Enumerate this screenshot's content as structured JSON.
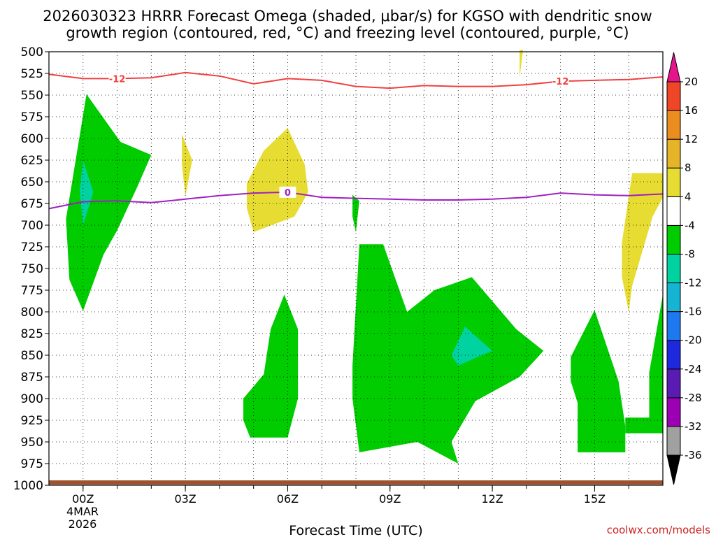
{
  "chart_data": {
    "type": "heatmap",
    "title_line1": "2026030323 HRRR Forecast Omega (shaded, μbar/s) for KGSO with dendritic snow",
    "title_line2": "growth region (contoured, red, °C) and freezing level (contoured, purple, °C)",
    "xlabel": "Forecast Time (UTC)",
    "credit": "coolwx.com/models",
    "credit_color": "#cc2222",
    "x_range_hours": [
      -1,
      17
    ],
    "y_range_hpa": [
      500,
      1000
    ],
    "y_ticks": [
      500,
      525,
      550,
      575,
      600,
      625,
      650,
      675,
      700,
      725,
      750,
      775,
      800,
      825,
      850,
      875,
      900,
      925,
      950,
      975,
      1000
    ],
    "x_ticks": [
      {
        "hour": 0,
        "label": "00Z"
      },
      {
        "hour": 3,
        "label": "03Z"
      },
      {
        "hour": 6,
        "label": "06Z"
      },
      {
        "hour": 9,
        "label": "09Z"
      },
      {
        "hour": 12,
        "label": "12Z"
      },
      {
        "hour": 15,
        "label": "15Z"
      }
    ],
    "x_date_label_line1": "4MAR",
    "x_date_label_line2": "2026",
    "grid": "dotted",
    "colorbar": {
      "levels": [
        -36,
        -32,
        -28,
        -24,
        -20,
        -16,
        -12,
        -8,
        -4,
        4,
        8,
        12,
        16,
        20
      ],
      "level_labels": [
        "-36",
        "-32",
        "-28",
        "-24",
        "-20",
        "-16",
        "-12",
        "-8",
        "-4",
        "4",
        "8",
        "12",
        "16",
        "20"
      ],
      "colors": [
        "#a0a0a0",
        "#9b00b4",
        "#5a1ab4",
        "#1e28dc",
        "#1e78f0",
        "#14b4d2",
        "#00d2a0",
        "#00cc00",
        "#ffffff",
        "#e6dc32",
        "#e6b428",
        "#eb8c1e",
        "#f04628"
      ],
      "below_color": "#000000",
      "above_color": "#e6148c"
    },
    "shaded_regions": [
      {
        "category": "-8 to -4",
        "color": "#00cc00",
        "points": [
          [
            -0.5,
            693
          ],
          [
            0.1,
            549
          ],
          [
            1.1,
            604
          ],
          [
            2.0,
            619
          ],
          [
            1.6,
            655
          ],
          [
            1.0,
            706
          ],
          [
            0.6,
            734
          ],
          [
            0.0,
            799
          ],
          [
            -0.4,
            763
          ]
        ]
      },
      {
        "category": "-12 to -8",
        "color": "#00d2a0",
        "points": [
          [
            0.0,
            625
          ],
          [
            0.3,
            662
          ],
          [
            0.0,
            700
          ],
          [
            -0.1,
            660
          ]
        ]
      },
      {
        "category": "4 to 8",
        "color": "#e6dc32",
        "points": [
          [
            2.9,
            595
          ],
          [
            3.2,
            625
          ],
          [
            3.0,
            667
          ],
          [
            2.9,
            630
          ]
        ]
      },
      {
        "category": "4 to 8",
        "color": "#e6dc32",
        "points": [
          [
            4.8,
            652
          ],
          [
            5.3,
            614
          ],
          [
            6.0,
            588
          ],
          [
            6.5,
            630
          ],
          [
            6.6,
            662
          ],
          [
            6.2,
            690
          ],
          [
            5.0,
            708
          ],
          [
            4.8,
            680
          ]
        ]
      },
      {
        "category": "4 to 8",
        "color": "#e6dc32",
        "points": [
          [
            12.8,
            498
          ],
          [
            12.9,
            498
          ],
          [
            12.8,
            530
          ]
        ]
      },
      {
        "category": "-8 to -4",
        "color": "#00cc00",
        "points": [
          [
            7.9,
            665
          ],
          [
            8.1,
            672
          ],
          [
            8.0,
            708
          ],
          [
            7.9,
            690
          ]
        ]
      },
      {
        "category": "-8 to -4",
        "color": "#00cc00",
        "points": [
          [
            4.7,
            900
          ],
          [
            5.3,
            872
          ],
          [
            5.5,
            820
          ],
          [
            5.9,
            780
          ],
          [
            6.3,
            820
          ],
          [
            6.3,
            900
          ],
          [
            6.0,
            945
          ],
          [
            4.9,
            945
          ],
          [
            4.7,
            925
          ]
        ]
      },
      {
        "category": "-8 to -4",
        "color": "#00cc00",
        "points": [
          [
            7.9,
            862
          ],
          [
            8.1,
            722
          ],
          [
            8.8,
            722
          ],
          [
            9.5,
            800
          ],
          [
            10.3,
            775
          ],
          [
            11.4,
            760
          ],
          [
            12.7,
            820
          ],
          [
            13.5,
            845
          ],
          [
            12.8,
            875
          ],
          [
            11.5,
            903
          ],
          [
            10.8,
            950
          ],
          [
            11.0,
            975
          ],
          [
            9.8,
            950
          ],
          [
            8.1,
            962
          ],
          [
            7.9,
            900
          ]
        ]
      },
      {
        "category": "-12 to -8",
        "color": "#00d2a0",
        "points": [
          [
            10.8,
            850
          ],
          [
            11.2,
            817
          ],
          [
            12.0,
            845
          ],
          [
            11.4,
            855
          ],
          [
            11.0,
            862
          ]
        ]
      },
      {
        "category": "-8 to -4",
        "color": "#00cc00",
        "points": [
          [
            14.3,
            852
          ],
          [
            15.0,
            798
          ],
          [
            15.7,
            880
          ],
          [
            15.9,
            932
          ],
          [
            15.9,
            962
          ],
          [
            14.5,
            962
          ],
          [
            14.5,
            905
          ],
          [
            14.3,
            880
          ]
        ]
      },
      {
        "category": "-8 to -4",
        "color": "#00cc00",
        "points": [
          [
            15.9,
            922
          ],
          [
            16.6,
            922
          ],
          [
            16.6,
            870
          ],
          [
            17.0,
            780
          ],
          [
            17.0,
            940
          ],
          [
            15.9,
            940
          ]
        ]
      },
      {
        "category": "4 to 8",
        "color": "#e6dc32",
        "points": [
          [
            15.8,
            720
          ],
          [
            16.1,
            640
          ],
          [
            17.0,
            640
          ],
          [
            17.0,
            668
          ],
          [
            16.7,
            690
          ],
          [
            16.1,
            770
          ],
          [
            16.0,
            800
          ],
          [
            15.8,
            760
          ]
        ]
      }
    ],
    "dgz_contour_-12C": {
      "color": "#f04040",
      "label": "-12",
      "points": [
        [
          -1,
          526
        ],
        [
          0,
          531
        ],
        [
          1,
          531
        ],
        [
          2,
          530
        ],
        [
          3,
          524
        ],
        [
          4,
          528
        ],
        [
          5,
          537
        ],
        [
          6,
          531
        ],
        [
          7,
          533
        ],
        [
          8,
          540
        ],
        [
          9,
          542
        ],
        [
          10,
          539
        ],
        [
          11,
          540
        ],
        [
          12,
          540
        ],
        [
          13,
          538
        ],
        [
          14,
          534
        ],
        [
          15,
          533
        ],
        [
          16,
          532
        ],
        [
          17,
          529
        ]
      ]
    },
    "freezing_level_0C": {
      "color": "#a020c0",
      "label": "0",
      "points": [
        [
          -1,
          681
        ],
        [
          0,
          673
        ],
        [
          1,
          672
        ],
        [
          2,
          674
        ],
        [
          3,
          670
        ],
        [
          4,
          666
        ],
        [
          5,
          663
        ],
        [
          6,
          662
        ],
        [
          7,
          668
        ],
        [
          8,
          669
        ],
        [
          9,
          670
        ],
        [
          10,
          671
        ],
        [
          11,
          671
        ],
        [
          12,
          670
        ],
        [
          13,
          668
        ],
        [
          14,
          663
        ],
        [
          15,
          665
        ],
        [
          16,
          666
        ],
        [
          17,
          664
        ]
      ]
    },
    "surface_strip_color": "#a0522d"
  }
}
